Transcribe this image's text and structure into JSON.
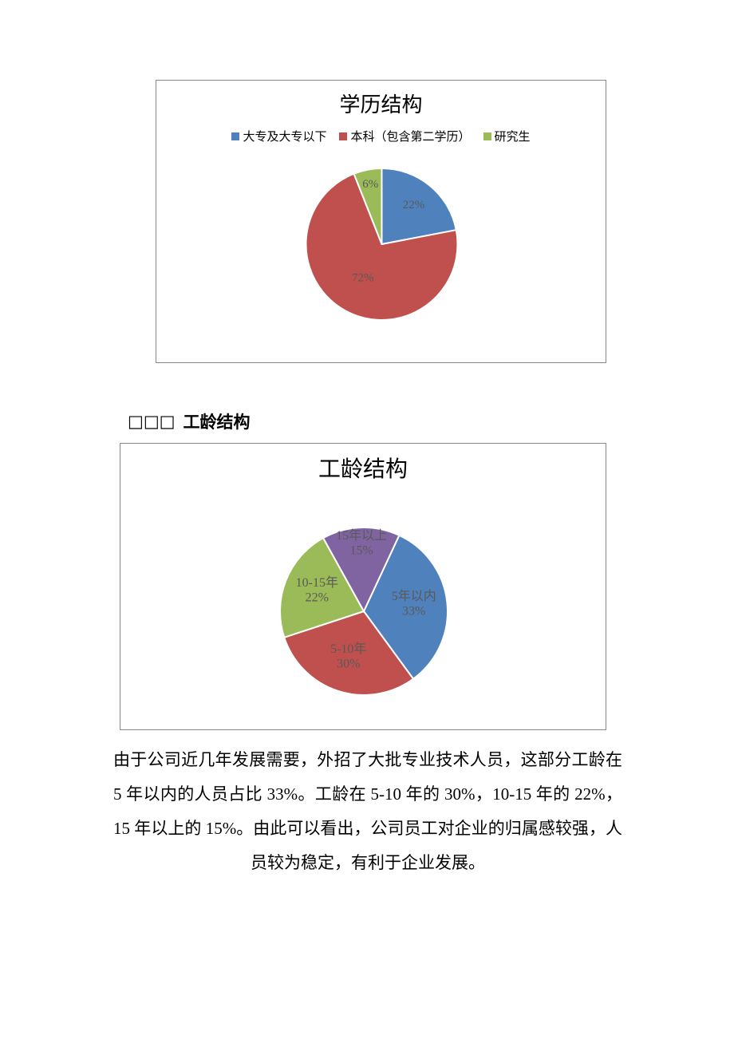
{
  "chart1": {
    "type": "pie",
    "title": "学历结构",
    "title_fontsize": 26,
    "title_color": "#000000",
    "legend_fontsize": 15,
    "legend_text_color": "#595959",
    "border_color": "#888888",
    "background_color": "#ffffff",
    "pie_radius": 95,
    "slices": [
      {
        "label": "大专及大专以下",
        "value": 22,
        "value_label": "22%",
        "color": "#4f81bd"
      },
      {
        "label": "本科（包含第二学历）",
        "value": 72,
        "value_label": "72%",
        "color": "#c0504d"
      },
      {
        "label": "研究生",
        "value": 6,
        "value_label": "6%",
        "color": "#9bbb59"
      }
    ],
    "slice_label_fontsize": 15,
    "slice_label_color": "#595959",
    "start_angle_deg": -90
  },
  "section_heading": {
    "prefix_boxes": "□□□",
    "text": "工龄结构",
    "fontsize": 21
  },
  "chart2": {
    "type": "pie",
    "title": "工龄结构",
    "title_fontsize": 28,
    "title_color": "#000000",
    "border_color": "#888888",
    "background_color": "#ffffff",
    "pie_radius": 105,
    "slices": [
      {
        "label": "5年以内",
        "value": 33,
        "value_label": "33%",
        "color": "#4f81bd"
      },
      {
        "label": "5-10年",
        "value": 30,
        "value_label": "30%",
        "color": "#c0504d"
      },
      {
        "label": "10-15年",
        "value": 22,
        "value_label": "22%",
        "color": "#9bbb59"
      },
      {
        "label": "15年以上",
        "value": 15,
        "value_label": "15%",
        "color": "#8064a2"
      }
    ],
    "slice_label_fontsize": 16,
    "slice_label_color": "#595959",
    "start_angle_deg": -65
  },
  "paragraph": {
    "text": "由于公司近几年发展需要，外招了大批专业技术人员，这部分工龄在 5 年以内的人员占比 33%。工龄在 5-10 年的 30%，10-15 年的 22%，15 年以上的 15%。由此可以看出，公司员工对企业的归属感较强，人员较为稳定，有利于企业发展。",
    "fontsize": 21,
    "color": "#000000"
  }
}
